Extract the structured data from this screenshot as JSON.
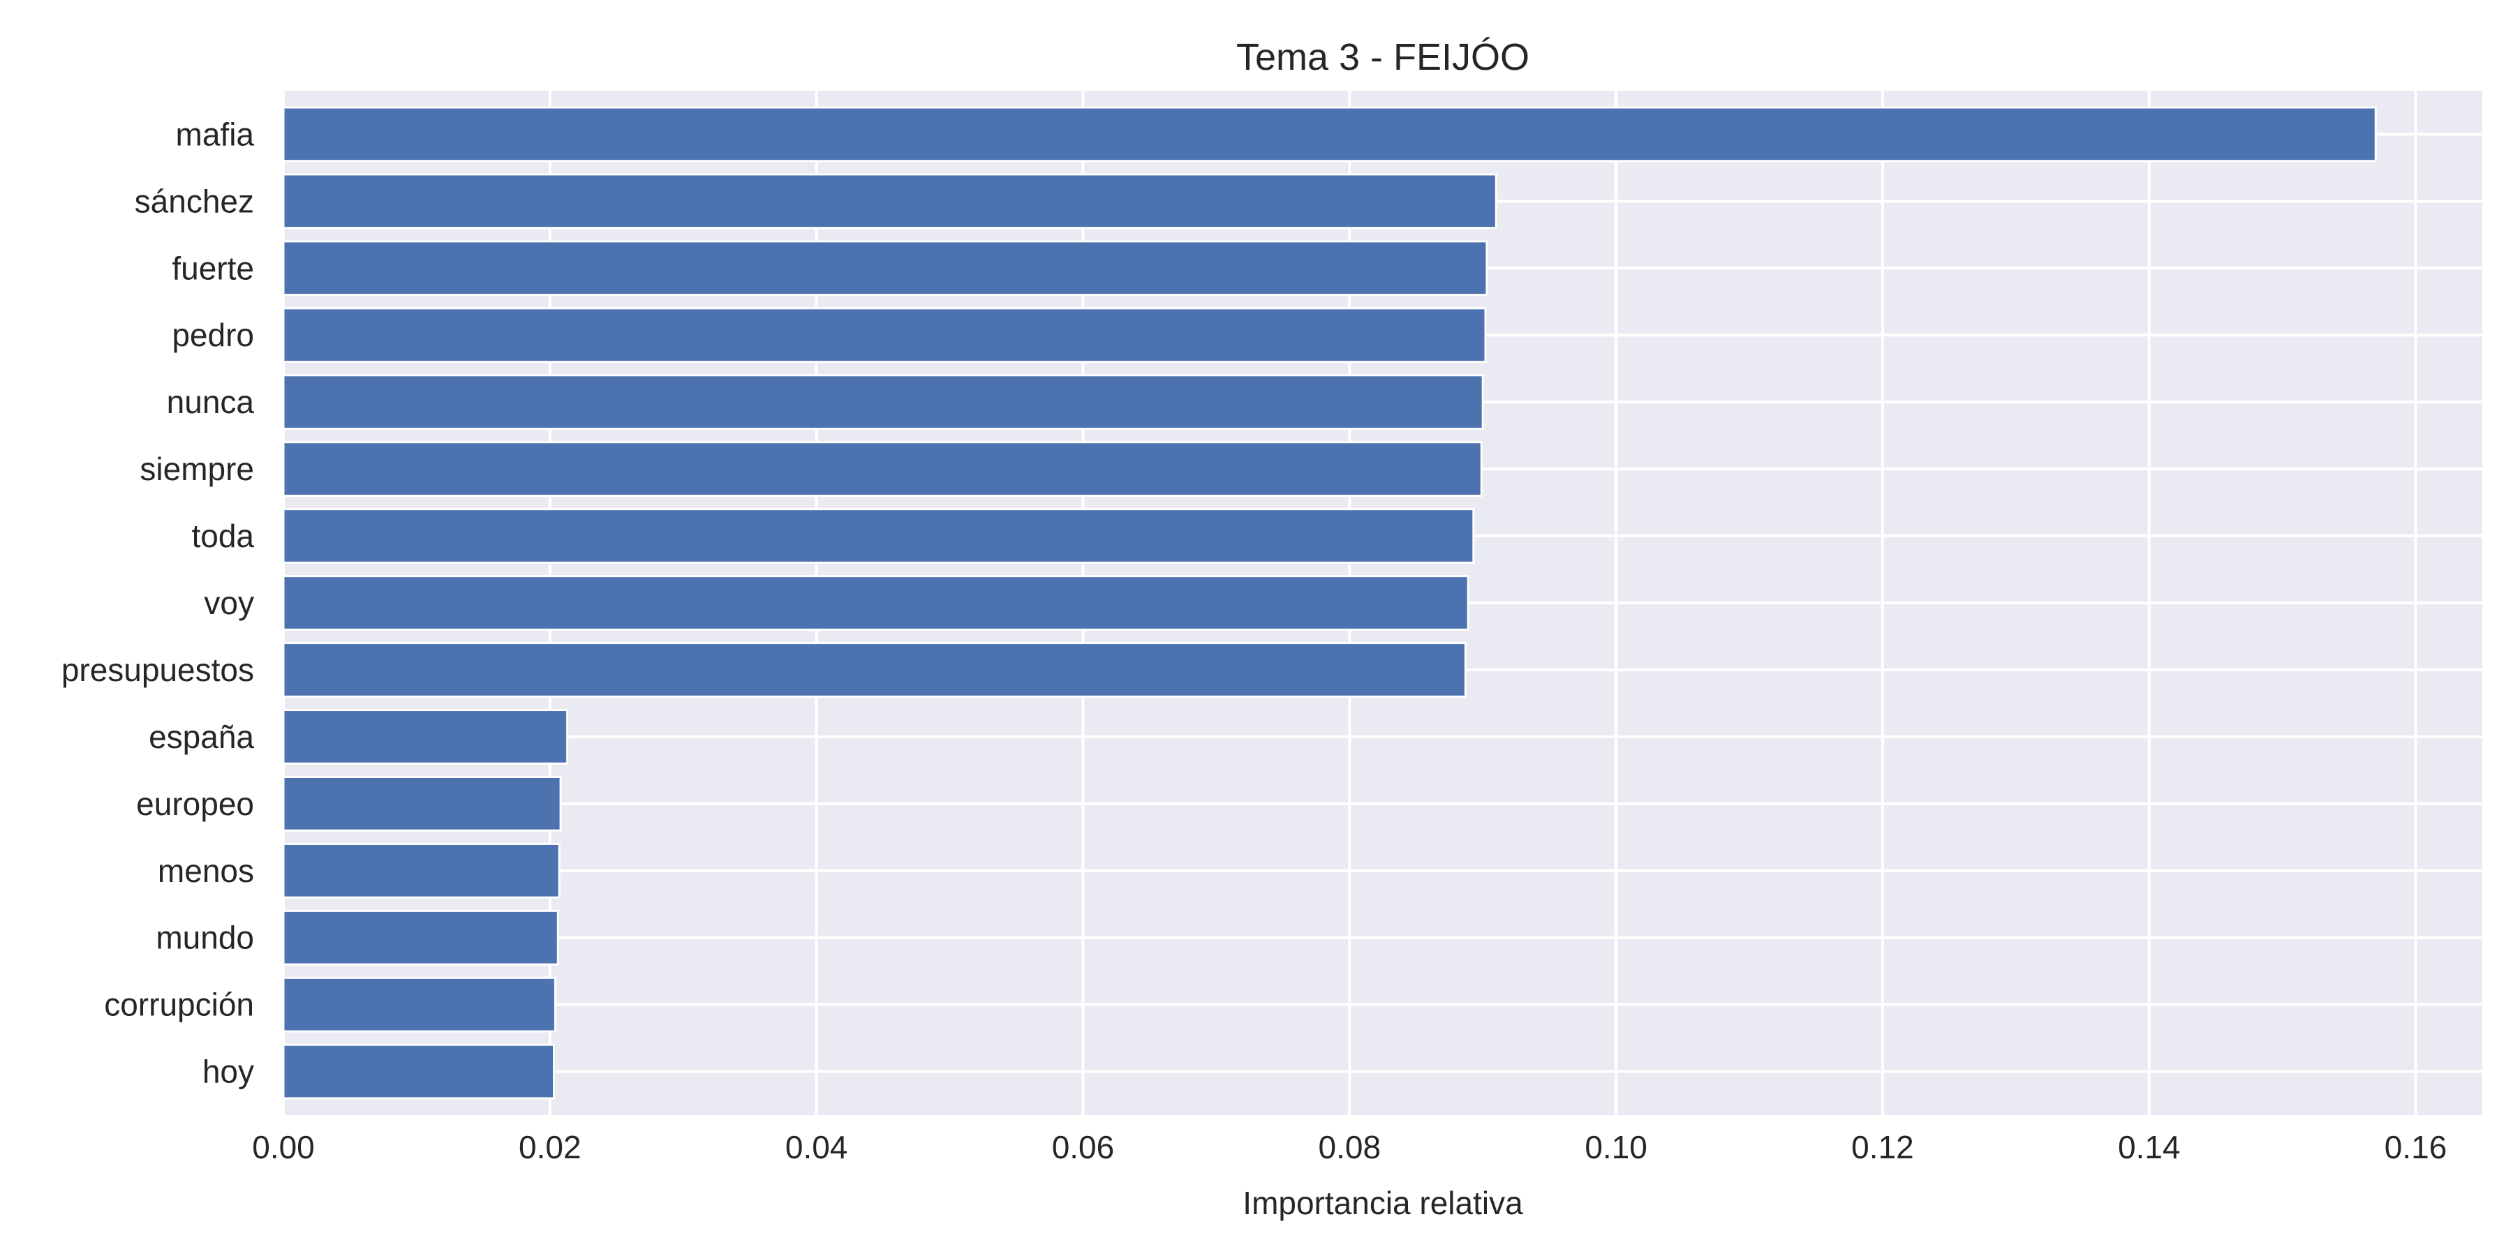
{
  "chart_data": {
    "type": "bar",
    "orientation": "horizontal",
    "title": "Tema 3 - FEIJÓO",
    "xlabel": "Importancia relativa",
    "ylabel": "",
    "xlim": [
      0,
      0.165
    ],
    "xticks": [
      "0.00",
      "0.02",
      "0.04",
      "0.06",
      "0.08",
      "0.10",
      "0.12",
      "0.14",
      "0.16"
    ],
    "grid": true,
    "categories": [
      "mafia",
      "sánchez",
      "fuerte",
      "pedro",
      "nunca",
      "siempre",
      "toda",
      "voy",
      "presupuestos",
      "españa",
      "europeo",
      "menos",
      "mundo",
      "corrupción",
      "hoy"
    ],
    "values": [
      0.157,
      0.091,
      0.0903,
      0.0902,
      0.09,
      0.0899,
      0.0893,
      0.0889,
      0.0887,
      0.0213,
      0.0208,
      0.0207,
      0.0206,
      0.0204,
      0.0203
    ],
    "colors": {
      "bar": "#4c72b0",
      "background": "#eaeaf2",
      "grid": "#ffffff"
    }
  }
}
